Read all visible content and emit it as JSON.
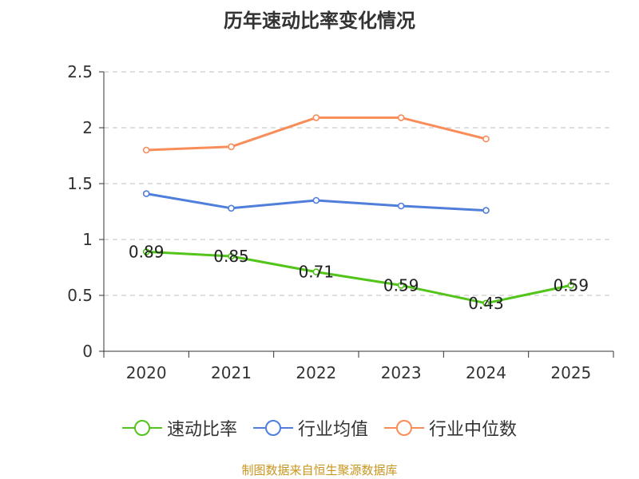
{
  "chart_data": {
    "type": "line",
    "title": "历年速动比率变化情况",
    "categories": [
      "2020",
      "2021",
      "2022",
      "2023",
      "2024",
      "2025"
    ],
    "ylim": [
      0,
      2.5
    ],
    "yticks": [
      "0",
      "0.5",
      "1",
      "1.5",
      "2",
      "2.5"
    ],
    "grid": true,
    "legend_position": "bottom",
    "series": [
      {
        "name": "速动比率",
        "color": "#52c41a",
        "values": [
          0.89,
          0.85,
          0.71,
          0.59,
          0.43,
          0.59
        ],
        "labels": [
          "0.89",
          "0.85",
          "0.71",
          "0.59",
          "0.43",
          "0.59"
        ]
      },
      {
        "name": "行业均值",
        "color": "#4f7fdb",
        "values": [
          1.41,
          1.28,
          1.35,
          1.3,
          1.26,
          null
        ]
      },
      {
        "name": "行业中位数",
        "color": "#f98d5a",
        "values": [
          1.8,
          1.83,
          2.09,
          2.09,
          1.9,
          null
        ]
      }
    ]
  },
  "source": "制图数据来自恒生聚源数据库"
}
